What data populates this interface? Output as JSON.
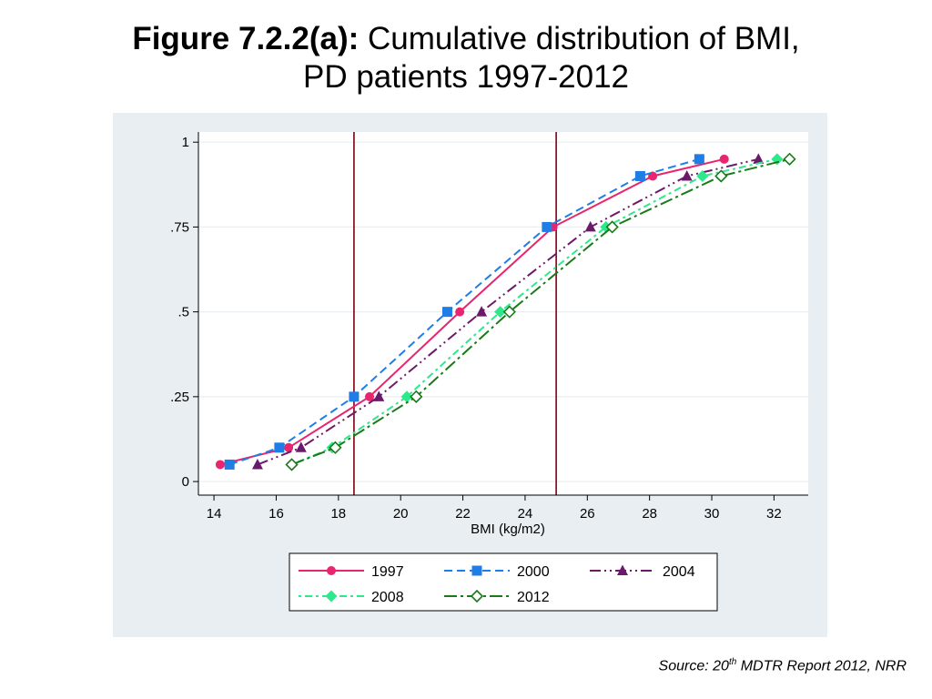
{
  "title": {
    "bold": "Figure 7.2.2(a):",
    "line1_rest": " Cumulative distribution of BMI,",
    "line2": "PD patients 1997-2012"
  },
  "source": {
    "prefix": "Source: 20",
    "sup": "th",
    "suffix": " MDTR Report 2012, NRR"
  },
  "colors": {
    "panel_bg": "#e8eef2",
    "plot_bg": "#ffffff",
    "grid": "#e8eef2",
    "ref_line": "#8b1a2b"
  },
  "chart_data": {
    "type": "line",
    "title": "",
    "xlabel": "BMI (kg/m2)",
    "ylabel": "",
    "xlim": [
      13.5,
      33.1
    ],
    "ylim": [
      -0.04,
      1.03
    ],
    "x_ticks": [
      14,
      16,
      18,
      20,
      22,
      24,
      26,
      28,
      30,
      32
    ],
    "y_ticks": [
      0,
      0.25,
      0.5,
      0.75,
      1
    ],
    "y_tick_labels": [
      "0",
      ".25",
      ".5",
      ".75",
      "1"
    ],
    "grid": true,
    "legend_position": "bottom",
    "reference_lines_x": [
      18.5,
      25
    ],
    "series": [
      {
        "name": "1997",
        "color": "#e8256e",
        "dash": "",
        "marker": "circle",
        "x": [
          14.2,
          16.4,
          19.0,
          21.9,
          24.9,
          28.1,
          30.4
        ],
        "y": [
          0.05,
          0.1,
          0.25,
          0.5,
          0.75,
          0.9,
          0.95
        ]
      },
      {
        "name": "2000",
        "color": "#1e7ee6",
        "dash": "9,5",
        "marker": "square",
        "x": [
          14.5,
          16.1,
          18.5,
          21.5,
          24.7,
          27.7,
          29.6
        ],
        "y": [
          0.05,
          0.1,
          0.25,
          0.5,
          0.75,
          0.9,
          0.95
        ]
      },
      {
        "name": "2004",
        "color": "#6b1a6b",
        "dash": "12,4,2,4,2,4",
        "marker": "triangle",
        "x": [
          15.4,
          16.8,
          19.3,
          22.6,
          26.1,
          29.2,
          31.5
        ],
        "y": [
          0.05,
          0.1,
          0.25,
          0.5,
          0.75,
          0.9,
          0.95
        ]
      },
      {
        "name": "2008",
        "color": "#2ee88c",
        "dash": "3,4,8,4",
        "marker": "diamond",
        "x": [
          16.5,
          17.8,
          20.2,
          23.2,
          26.6,
          29.7,
          32.1
        ],
        "y": [
          0.05,
          0.1,
          0.25,
          0.5,
          0.75,
          0.9,
          0.95
        ]
      },
      {
        "name": "2012",
        "color": "#1a7a1a",
        "dash": "14,4,3,4",
        "marker": "diamond-open",
        "x": [
          16.5,
          17.9,
          20.5,
          23.5,
          26.8,
          30.3,
          32.5
        ],
        "y": [
          0.05,
          0.1,
          0.25,
          0.5,
          0.75,
          0.9,
          0.95
        ]
      }
    ]
  }
}
